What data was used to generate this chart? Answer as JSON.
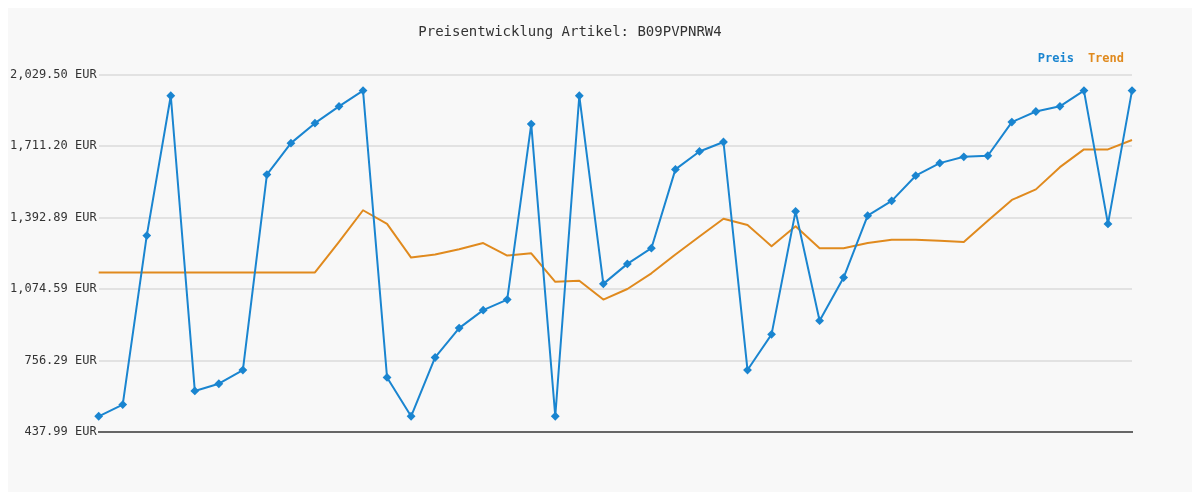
{
  "chart_data": {
    "type": "line",
    "title": "Preisentwicklung Artikel: B09PVPNRW4",
    "categories": [
      null,
      null,
      null,
      null,
      null,
      null,
      null,
      null,
      null,
      null,
      null,
      null,
      null,
      null,
      null,
      null,
      null,
      null,
      null,
      null,
      null,
      null,
      null,
      null,
      null,
      null,
      null,
      null,
      null,
      null,
      null,
      null,
      null,
      null,
      null,
      null,
      null,
      null,
      null,
      null,
      null,
      null,
      null,
      null
    ],
    "series": [
      {
        "name": "Preis",
        "color": "#1a85d0",
        "marker": "diamond",
        "values": [
          508,
          560,
          1313,
          1936,
          621,
          653,
          714,
          1585,
          1725,
          1814,
          1889,
          1959,
          681,
          508,
          770,
          901,
          981,
          1028,
          1810,
          508,
          1936,
          1098,
          1187,
          1257,
          1608,
          1688,
          1730,
          714,
          873,
          1421,
          934,
          1126,
          1402,
          1468,
          1580,
          1636,
          1664,
          1669,
          1819,
          1866,
          1889,
          1959,
          1365,
          1959
        ]
      },
      {
        "name": "Trend",
        "color": "#e08a1e",
        "marker": "none",
        "values": [
          1149,
          1149,
          1149,
          1149,
          1149,
          1149,
          1149,
          1149,
          1149,
          1149,
          1285,
          1426,
          1365,
          1215,
          1229,
          1252,
          1280,
          1224,
          1234,
          1107,
          1112,
          1028,
          1075,
          1145,
          1229,
          1309,
          1388,
          1360,
          1266,
          1355,
          1257,
          1257,
          1280,
          1295,
          1295,
          1290,
          1285,
          1379,
          1472,
          1519,
          1618,
          1697,
          1697,
          1739
        ]
      }
    ],
    "ylim": [
      437.99,
      2029.5
    ],
    "yticks": [
      {
        "value": 437.99,
        "label": "437.99 EUR"
      },
      {
        "value": 756.29,
        "label": "756.29 EUR"
      },
      {
        "value": 1074.59,
        "label": "1,074.59 EUR"
      },
      {
        "value": 1392.89,
        "label": "1,392.89 EUR"
      },
      {
        "value": 1711.2,
        "label": "1,711.20 EUR"
      },
      {
        "value": 2029.5,
        "label": "2,029.50 EUR"
      }
    ],
    "grid": "y",
    "legend": "top right",
    "tick_labels": "y"
  }
}
